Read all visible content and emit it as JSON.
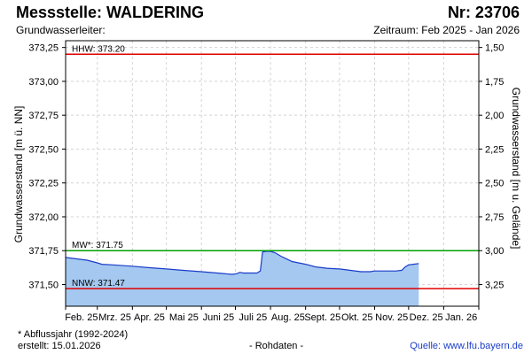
{
  "header": {
    "title": "Messstelle: WALDERING",
    "number": "Nr: 23706",
    "subtitle": "Grundwasserleiter:",
    "period": "Zeitraum: Feb 2025 - Jan 2026"
  },
  "footer": {
    "note": "* Abflussjahr (1992-2024)",
    "created": "erstellt:  15.01.2026",
    "rawdata": "- Rohdaten -",
    "source": "Quelle: www.lfu.bayern.de"
  },
  "chart_data": {
    "type": "area",
    "ylabel_left": "Grundwasserstand [m ü. NN]",
    "ylabel_right": "Grundwasserstand [m u. Gelände]",
    "ylim": [
      371.34,
      373.3
    ],
    "y_ticks": [
      {
        "value": 373.25,
        "label": "373,25"
      },
      {
        "value": 373.0,
        "label": "373,00"
      },
      {
        "value": 372.75,
        "label": "372,75"
      },
      {
        "value": 372.5,
        "label": "372,50"
      },
      {
        "value": 372.25,
        "label": "372,25"
      },
      {
        "value": 372.0,
        "label": "372,00"
      },
      {
        "value": 371.75,
        "label": "371,75"
      },
      {
        "value": 371.5,
        "label": "371,50"
      }
    ],
    "y2_ticks": [
      {
        "value": 373.25,
        "label": "1,50"
      },
      {
        "value": 373.0,
        "label": "1,75"
      },
      {
        "value": 372.75,
        "label": "2,00"
      },
      {
        "value": 372.5,
        "label": "2,25"
      },
      {
        "value": 372.25,
        "label": "2,50"
      },
      {
        "value": 372.0,
        "label": "2,75"
      },
      {
        "value": 371.75,
        "label": "3,00"
      },
      {
        "value": 371.5,
        "label": "3,25"
      }
    ],
    "x_ticks": [
      "Feb. 25",
      "Mrz. 25",
      "Apr. 25",
      "Mai 25",
      "Juni 25",
      "Juli 25",
      "Aug. 25",
      "Sept. 25",
      "Okt. 25",
      "Nov. 25",
      "Dez. 25",
      "Jan. 26"
    ],
    "grid": true,
    "reference_lines": [
      {
        "label": "HHW: 373.20",
        "value": 373.2,
        "color": "#e00000"
      },
      {
        "label": "MW*: 371.75",
        "value": 371.75,
        "color": "#00a000"
      },
      {
        "label": "NNW: 371.47",
        "value": 371.47,
        "color": "#e00000"
      }
    ],
    "series": [
      {
        "line_color": "#1a3cc8",
        "fill_color": "#a4c8f0",
        "points": [
          [
            "2025-02-01",
            371.7
          ],
          [
            "2025-02-10",
            371.69
          ],
          [
            "2025-02-20",
            371.68
          ],
          [
            "2025-03-01",
            371.66
          ],
          [
            "2025-03-05",
            371.65
          ],
          [
            "2025-03-15",
            371.645
          ],
          [
            "2025-04-01",
            371.635
          ],
          [
            "2025-04-15",
            371.625
          ],
          [
            "2025-05-01",
            371.615
          ],
          [
            "2025-05-15",
            371.605
          ],
          [
            "2025-06-01",
            371.595
          ],
          [
            "2025-06-15",
            371.585
          ],
          [
            "2025-06-28",
            371.575
          ],
          [
            "2025-07-02",
            371.58
          ],
          [
            "2025-07-05",
            371.59
          ],
          [
            "2025-07-08",
            371.585
          ],
          [
            "2025-07-15",
            371.585
          ],
          [
            "2025-07-20",
            371.585
          ],
          [
            "2025-07-23",
            371.6
          ],
          [
            "2025-07-25",
            371.74
          ],
          [
            "2025-07-28",
            371.745
          ],
          [
            "2025-08-01",
            371.745
          ],
          [
            "2025-08-05",
            371.735
          ],
          [
            "2025-08-10",
            371.71
          ],
          [
            "2025-08-15",
            371.69
          ],
          [
            "2025-08-20",
            371.67
          ],
          [
            "2025-09-01",
            371.65
          ],
          [
            "2025-09-10",
            371.63
          ],
          [
            "2025-09-20",
            371.62
          ],
          [
            "2025-10-01",
            371.615
          ],
          [
            "2025-10-10",
            371.605
          ],
          [
            "2025-10-20",
            371.595
          ],
          [
            "2025-10-28",
            371.595
          ],
          [
            "2025-11-01",
            371.6
          ],
          [
            "2025-11-10",
            371.6
          ],
          [
            "2025-11-20",
            371.6
          ],
          [
            "2025-11-25",
            371.605
          ],
          [
            "2025-11-28",
            371.63
          ],
          [
            "2025-12-01",
            371.645
          ],
          [
            "2025-12-05",
            371.65
          ],
          [
            "2025-12-10",
            371.655
          ]
        ]
      }
    ]
  }
}
